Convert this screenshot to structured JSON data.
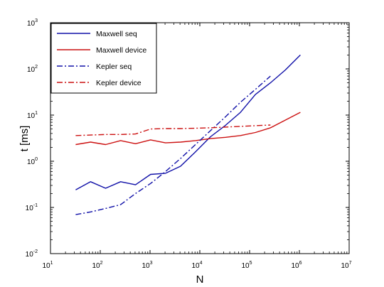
{
  "chart_data": {
    "type": "line",
    "title": "",
    "xlabel": "N",
    "ylabel": "t [ms]",
    "xscale": "log",
    "yscale": "log",
    "xlim": [
      10,
      10000000
    ],
    "ylim": [
      0.01,
      1000
    ],
    "x_ticks": [
      {
        "base": "10",
        "exp": "1"
      },
      {
        "base": "10",
        "exp": "2"
      },
      {
        "base": "10",
        "exp": "3"
      },
      {
        "base": "10",
        "exp": "4"
      },
      {
        "base": "10",
        "exp": "5"
      },
      {
        "base": "10",
        "exp": "6"
      },
      {
        "base": "10",
        "exp": "7"
      }
    ],
    "y_ticks": [
      {
        "base": "10",
        "exp": "-2"
      },
      {
        "base": "10",
        "exp": "-1"
      },
      {
        "base": "10",
        "exp": "0"
      },
      {
        "base": "10",
        "exp": "1"
      },
      {
        "base": "10",
        "exp": "2"
      },
      {
        "base": "10",
        "exp": "3"
      }
    ],
    "grid": false,
    "legend_position": "top-left",
    "series": [
      {
        "name": "Maxwell seq",
        "color": "#1010a8",
        "dash": "solid",
        "x": [
          32,
          64,
          128,
          256,
          512,
          1024,
          2048,
          4096,
          8192,
          16384,
          32768,
          65536,
          131072,
          262144,
          524288,
          1048576
        ],
        "y": [
          0.24,
          0.36,
          0.26,
          0.36,
          0.31,
          0.52,
          0.55,
          0.78,
          1.6,
          3.4,
          6.0,
          11.5,
          28,
          50,
          95,
          200
        ]
      },
      {
        "name": "Maxwell device",
        "color": "#cc1010",
        "dash": "solid",
        "x": [
          32,
          64,
          128,
          256,
          512,
          1024,
          2048,
          4096,
          8192,
          16384,
          32768,
          65536,
          131072,
          262144,
          524288,
          1048576
        ],
        "y": [
          2.3,
          2.6,
          2.3,
          2.8,
          2.4,
          2.9,
          2.5,
          2.6,
          2.8,
          3.1,
          3.3,
          3.6,
          4.2,
          5.3,
          7.8,
          11.5
        ]
      },
      {
        "name": "Kepler seq",
        "color": "#1010a8",
        "dash": "dashdot",
        "x": [
          32,
          64,
          128,
          256,
          512,
          1024,
          2048,
          4096,
          8192,
          16384,
          32768,
          65536,
          131072,
          262144
        ],
        "y": [
          0.07,
          0.08,
          0.095,
          0.115,
          0.2,
          0.33,
          0.6,
          1.15,
          2.3,
          4.6,
          9.2,
          19,
          36,
          70
        ]
      },
      {
        "name": "Kepler device",
        "color": "#cc1010",
        "dash": "dashdot",
        "x": [
          32,
          64,
          128,
          256,
          512,
          1024,
          2048,
          4096,
          8192,
          16384,
          32768,
          65536,
          131072,
          262144
        ],
        "y": [
          3.6,
          3.7,
          3.8,
          3.8,
          3.9,
          5.0,
          5.1,
          5.1,
          5.2,
          5.3,
          5.5,
          5.7,
          5.9,
          6.1
        ]
      }
    ]
  }
}
